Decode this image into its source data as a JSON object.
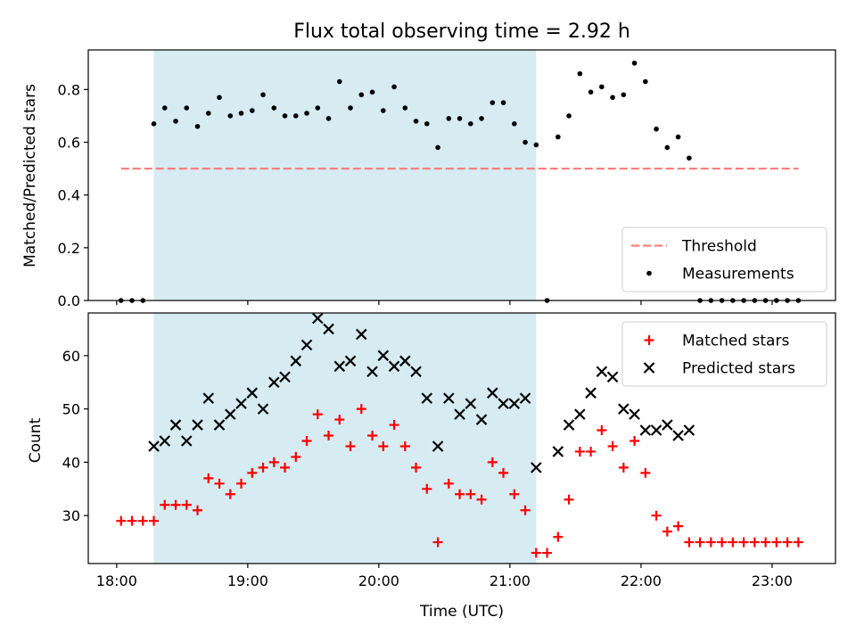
{
  "chart_data": {
    "type": "scatter",
    "title": "Flux total observing time = 2.92 h",
    "xlabel": "Time (UTC)",
    "xlim": [
      "17:47",
      "23:29"
    ],
    "x_ticks": [
      "18:00",
      "19:00",
      "20:00",
      "21:00",
      "22:00",
      "23:00"
    ],
    "shaded_interval": [
      "18:17",
      "21:12"
    ],
    "shaded_color": "#add8e6",
    "x": [
      "18:02",
      "18:07",
      "18:12",
      "18:17",
      "18:22",
      "18:27",
      "18:32",
      "18:37",
      "18:42",
      "18:47",
      "18:52",
      "18:57",
      "19:02",
      "19:07",
      "19:12",
      "19:17",
      "19:22",
      "19:27",
      "19:32",
      "19:37",
      "19:42",
      "19:47",
      "19:52",
      "19:57",
      "20:02",
      "20:07",
      "20:12",
      "20:17",
      "20:22",
      "20:27",
      "20:32",
      "20:37",
      "20:42",
      "20:47",
      "20:52",
      "20:57",
      "21:02",
      "21:07",
      "21:12",
      "21:17",
      "21:22",
      "21:27",
      "21:32",
      "21:37",
      "21:42",
      "21:47",
      "21:52",
      "21:57",
      "22:02",
      "22:07",
      "22:12",
      "22:17",
      "22:22",
      "22:27",
      "22:32",
      "22:37",
      "22:42",
      "22:47",
      "22:52",
      "22:57",
      "23:02",
      "23:07",
      "23:12"
    ],
    "panels": [
      {
        "ylabel": "Matched/Predicted stars",
        "ylim": [
          0,
          0.95
        ],
        "y_ticks": [
          "0.0",
          "0.2",
          "0.4",
          "0.6",
          "0.8"
        ],
        "legend_position": "lower-right",
        "threshold": {
          "name": "Threshold",
          "value": 0.5,
          "color": "#ff7f7f",
          "x_range": [
            "18:02",
            "23:12"
          ]
        },
        "series": [
          {
            "name": "Measurements",
            "marker": "dot",
            "color": "#000000",
            "values": [
              0,
              0,
              0,
              0.67,
              0.73,
              0.68,
              0.73,
              0.66,
              0.71,
              0.77,
              0.7,
              0.71,
              0.72,
              0.78,
              0.73,
              0.7,
              0.7,
              0.71,
              0.73,
              0.69,
              0.83,
              0.73,
              0.78,
              0.79,
              0.72,
              0.81,
              0.73,
              0.68,
              0.67,
              0.58,
              0.69,
              0.69,
              0.67,
              0.69,
              0.75,
              0.75,
              0.67,
              0.6,
              0.59,
              0,
              0.62,
              0.7,
              0.86,
              0.79,
              0.81,
              0.77,
              0.78,
              0.9,
              0.83,
              0.65,
              0.58,
              0.62,
              0.54,
              0,
              0,
              0,
              0,
              0,
              0,
              0,
              0,
              0,
              0
            ]
          }
        ]
      },
      {
        "ylabel": "Count",
        "ylim": [
          21,
          68
        ],
        "y_ticks": [
          "30",
          "40",
          "50",
          "60"
        ],
        "legend_position": "upper-right",
        "series": [
          {
            "name": "Matched stars",
            "marker": "plus",
            "color": "#ff0000",
            "values": [
              29,
              29,
              29,
              29,
              32,
              32,
              32,
              31,
              37,
              36,
              34,
              36,
              38,
              39,
              40,
              39,
              41,
              44,
              49,
              45,
              48,
              43,
              50,
              45,
              43,
              47,
              43,
              39,
              35,
              25,
              36,
              34,
              34,
              33,
              40,
              38,
              34,
              31,
              23,
              23,
              26,
              33,
              42,
              42,
              46,
              43,
              39,
              44,
              38,
              30,
              27,
              28,
              25,
              25,
              25,
              25,
              25,
              25,
              25,
              25,
              25,
              25,
              25
            ]
          },
          {
            "name": "Predicted stars",
            "marker": "x",
            "color": "#000000",
            "values": [
              null,
              null,
              null,
              43,
              44,
              47,
              44,
              47,
              52,
              47,
              49,
              51,
              53,
              50,
              55,
              56,
              59,
              62,
              67,
              65,
              58,
              59,
              64,
              57,
              60,
              58,
              59,
              57,
              52,
              43,
              52,
              49,
              51,
              48,
              53,
              51,
              51,
              52,
              39,
              null,
              42,
              47,
              49,
              53,
              57,
              56,
              50,
              49,
              46,
              46,
              47,
              45,
              46,
              null,
              null,
              null,
              null,
              null,
              null,
              null,
              null,
              null,
              null
            ]
          }
        ]
      }
    ]
  }
}
